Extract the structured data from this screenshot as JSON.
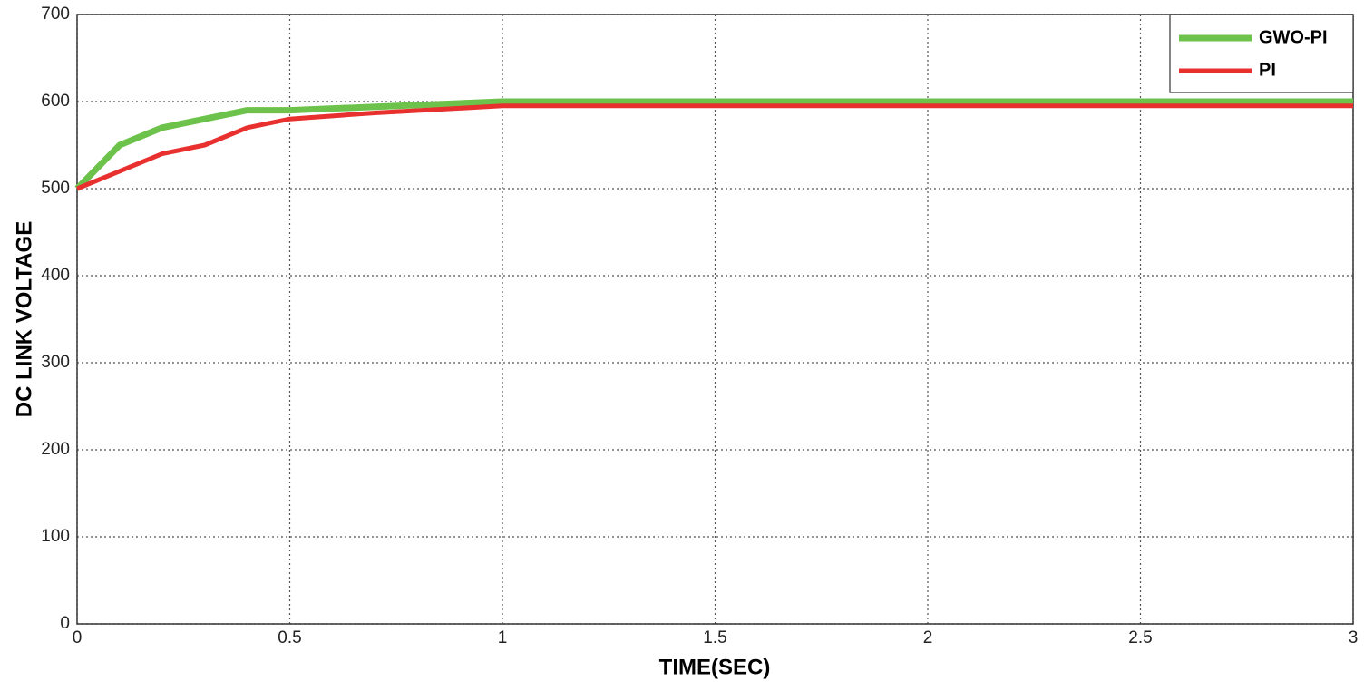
{
  "chart_data": {
    "type": "line",
    "xlabel": "TIME(SEC)",
    "ylabel": "DC LINK VOLTAGE",
    "xlim": [
      0,
      3
    ],
    "ylim": [
      0,
      700
    ],
    "xticks": [
      0,
      0.5,
      1,
      1.5,
      2,
      2.5,
      3
    ],
    "yticks": [
      0,
      100,
      200,
      300,
      400,
      500,
      600,
      700
    ],
    "grid": true,
    "legend": "upper right",
    "series": [
      {
        "name": "GWO-PI",
        "color": "#6cc24a",
        "x": [
          0,
          0.1,
          0.2,
          0.3,
          0.4,
          0.5,
          1,
          3
        ],
        "values": [
          500,
          550,
          570,
          580,
          590,
          590,
          600,
          600
        ]
      },
      {
        "name": "PI",
        "color": "#e8312f",
        "x": [
          0,
          0.1,
          0.2,
          0.3,
          0.4,
          0.5,
          0.7,
          1,
          3
        ],
        "values": [
          500,
          520,
          540,
          550,
          570,
          580,
          587,
          595,
          595
        ]
      }
    ]
  }
}
